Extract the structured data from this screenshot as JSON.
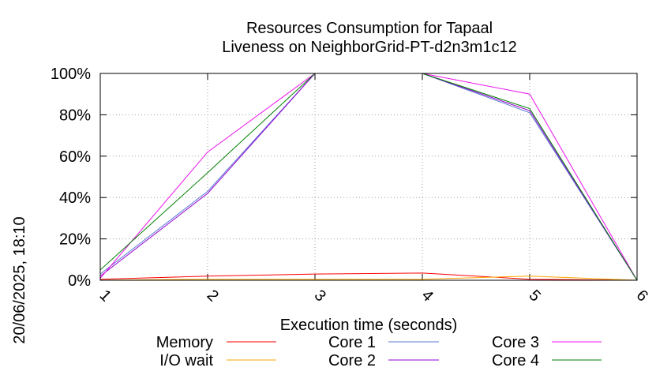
{
  "chart_data": {
    "type": "line",
    "title": "Resources Consumption for Tapaal",
    "subtitle": "Liveness on NeighborGrid-PT-d2n3m1c12",
    "xlabel": "Execution time (seconds)",
    "ylabel": "",
    "side_label": "20/06/2025, 18:10",
    "x": [
      1,
      2,
      3,
      4,
      5,
      6
    ],
    "xlim": [
      1,
      6
    ],
    "ylim": [
      0,
      100
    ],
    "x_ticks": [
      "1",
      "2",
      "3",
      "4",
      "5",
      "6"
    ],
    "y_ticks": [
      "0%",
      "20%",
      "40%",
      "60%",
      "80%",
      "100%"
    ],
    "y_tick_values": [
      0,
      20,
      40,
      60,
      80,
      100
    ],
    "grid": true,
    "legend_position": "bottom",
    "series": [
      {
        "name": "Memory",
        "color": "#ff0000",
        "values": [
          0.5,
          2,
          3,
          3.5,
          0.5,
          0
        ]
      },
      {
        "name": "I/O wait",
        "color": "#ffa500",
        "values": [
          0,
          0.5,
          0.5,
          0.5,
          2,
          0
        ]
      },
      {
        "name": "Core 1",
        "color": "#5b7bd5",
        "values": [
          3,
          43,
          100,
          100,
          81,
          0
        ]
      },
      {
        "name": "Core 2",
        "color": "#9400d3",
        "values": [
          2,
          42,
          100,
          100,
          82,
          0
        ]
      },
      {
        "name": "Core 3",
        "color": "#ee11ee",
        "values": [
          1,
          62,
          100,
          100,
          90,
          0
        ]
      },
      {
        "name": "Core 4",
        "color": "#008000",
        "values": [
          5,
          52,
          100,
          100,
          83,
          0
        ]
      }
    ]
  }
}
